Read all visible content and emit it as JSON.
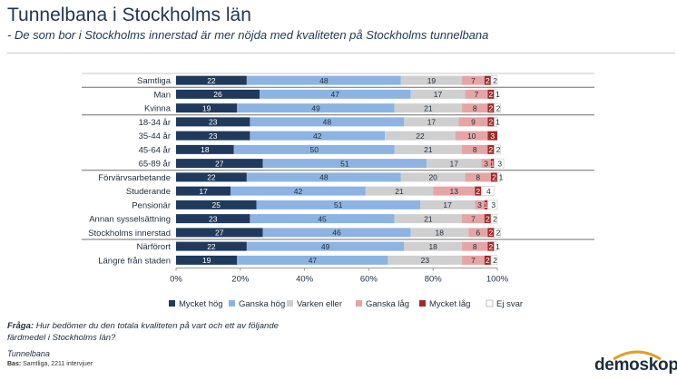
{
  "header": {
    "title": "Tunnelbana i Stockholms län",
    "subtitle": "- De som bor i Stockholms innerstad är mer nöjda med kvaliteten på Stockholms tunnelbana"
  },
  "footer": {
    "question_label": "Fråga:",
    "question_text": "Hur bedömer du den totala kvaliteten på vart och ett av följande",
    "question_text2": "färdmedel i Stockholms län?",
    "item": "Tunnelbana",
    "base_label": "Bas:",
    "base_text": "Samtliga, 2211 intervjuer",
    "logo": "demoskop"
  },
  "chart_data": {
    "type": "bar",
    "orientation": "horizontal",
    "stacked": true,
    "percent": true,
    "xlim": [
      0,
      100
    ],
    "xticks": [
      "0%",
      "20%",
      "40%",
      "60%",
      "80%",
      "100%"
    ],
    "groups_after_rows": [
      0,
      2,
      6,
      11
    ],
    "categories": [
      "Samtliga",
      "Man",
      "Kvinna",
      "18-34 år",
      "35-44 år",
      "45-64 år",
      "65-89 år",
      "Förvärvsarbetande",
      "Studerande",
      "Pensionär",
      "Annan sysselsättning",
      "Stockholms innerstad",
      "Närförort",
      "Längre från staden"
    ],
    "series": [
      {
        "name": "Mycket hög",
        "color": "#1f3a5c",
        "values": [
          22,
          26,
          19,
          23,
          23,
          18,
          27,
          22,
          17,
          25,
          23,
          27,
          22,
          19
        ]
      },
      {
        "name": "Ganska hög",
        "color": "#8db3e2",
        "values": [
          48,
          47,
          49,
          48,
          42,
          50,
          51,
          48,
          42,
          51,
          45,
          46,
          49,
          47
        ]
      },
      {
        "name": "Varken eller",
        "color": "#cfcfcf",
        "values": [
          19,
          17,
          21,
          17,
          22,
          21,
          17,
          20,
          21,
          17,
          21,
          18,
          18,
          23
        ]
      },
      {
        "name": "Ganska låg",
        "color": "#e6a5a5",
        "values": [
          7,
          7,
          8,
          9,
          10,
          8,
          3,
          8,
          13,
          3,
          7,
          6,
          8,
          7
        ]
      },
      {
        "name": "Mycket låg",
        "color": "#a02a2a",
        "values": [
          2,
          2,
          2,
          2,
          3,
          2,
          1,
          2,
          2,
          1,
          2,
          2,
          2,
          2
        ]
      },
      {
        "name": "Ej svar",
        "color": "#ffffff",
        "values": [
          2,
          1,
          2,
          1,
          0,
          2,
          3,
          1,
          4,
          3,
          2,
          2,
          1,
          2
        ]
      }
    ],
    "labels": [
      [
        "22",
        "48",
        "19",
        "7",
        "2",
        "2"
      ],
      [
        "26",
        "47",
        "17",
        "7",
        "2",
        "1"
      ],
      [
        "19",
        "49",
        "21",
        "8",
        "2",
        "2"
      ],
      [
        "23",
        "48",
        "17",
        "9",
        "2",
        "1"
      ],
      [
        "23",
        "42",
        "22",
        "10",
        "3",
        "0"
      ],
      [
        "18",
        "50",
        "21",
        "8",
        "2",
        "2"
      ],
      [
        "27",
        "51",
        "17",
        "3",
        "1",
        "3"
      ],
      [
        "22",
        "48",
        "20",
        "8",
        "2",
        "1"
      ],
      [
        "17",
        "42",
        "21",
        "13",
        "2",
        "4"
      ],
      [
        "25",
        "51",
        "17",
        "3",
        "1",
        "3"
      ],
      [
        "23",
        "45",
        "21",
        "7",
        "2",
        "2"
      ],
      [
        "27",
        "46",
        "18",
        "6",
        "2",
        "2"
      ],
      [
        "22",
        "49",
        "18",
        "8",
        "2",
        "1"
      ],
      [
        "19",
        "47",
        "23",
        "7",
        "2",
        "2"
      ]
    ]
  }
}
